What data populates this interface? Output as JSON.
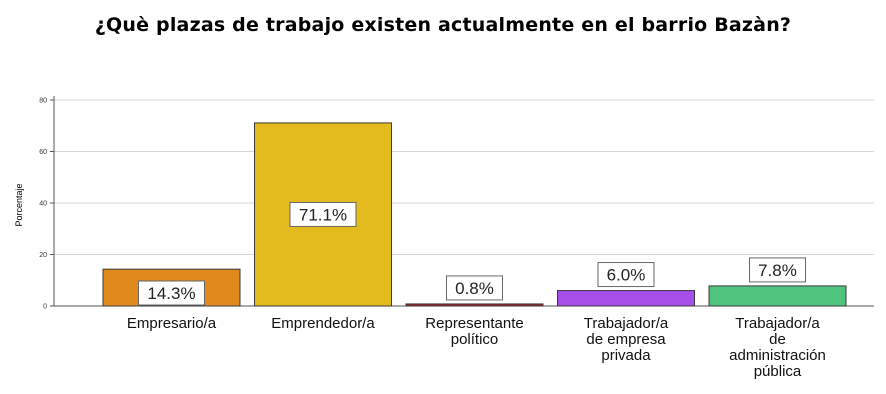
{
  "chart_data": {
    "type": "bar",
    "title": "¿Què plazas de trabajo existen actualmente en el barrio Bazàn?",
    "ylabel": "Porcentaje",
    "xlabel": "",
    "ylim": [
      0,
      80
    ],
    "yticks": [
      "0",
      "20",
      "40",
      "60",
      "80"
    ],
    "grid": true,
    "categories": [
      [
        "Empresario/a"
      ],
      [
        "Emprendedor/a"
      ],
      [
        "Representante",
        "político"
      ],
      [
        "Trabajador/a",
        "de empresa",
        "privada"
      ],
      [
        "Trabajador/a",
        "de",
        "administración",
        "pública"
      ]
    ],
    "values": [
      14.3,
      71.1,
      0.8,
      6.0,
      7.8
    ],
    "data_labels": [
      "14.3%",
      "71.1%",
      "0.8%",
      "6.0%",
      "7.8%"
    ],
    "colors": [
      "#e08a1e",
      "#e4bb1f",
      "#9e1f2a",
      "#a64ee8",
      "#4fc47f"
    ]
  }
}
